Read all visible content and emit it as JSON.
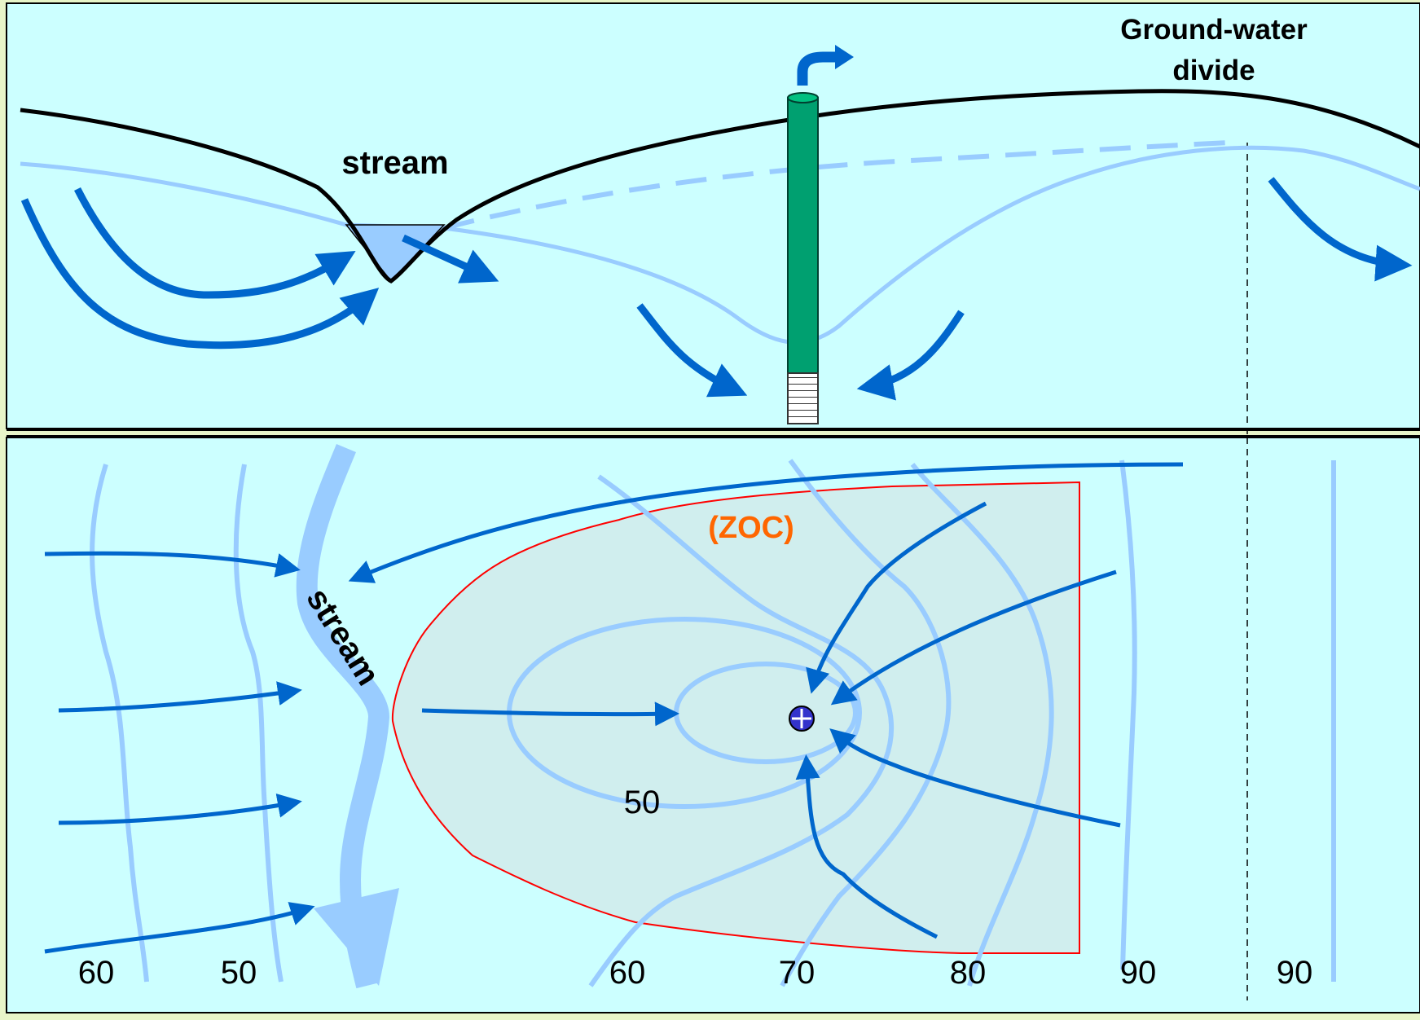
{
  "cross_section": {
    "stream_label": "stream",
    "divide_label_line1": "Ground-water",
    "divide_label_line2": "divide"
  },
  "plan_view": {
    "zoc_label": "(ZOC)",
    "stream_label": "stream",
    "inner_contour_label": "50",
    "bottom_contour_labels": [
      "60",
      "50",
      "60",
      "70",
      "80",
      "90",
      "90"
    ]
  },
  "colors": {
    "background": "#ccffff",
    "flow_arrow": "#0066cc",
    "contour": "#99ccff",
    "zoc_fill": "#d0eeee",
    "zoc_outline": "#ff0000",
    "zoc_label": "#ff6600",
    "well": "#00a070",
    "land_surface": "#000000"
  }
}
